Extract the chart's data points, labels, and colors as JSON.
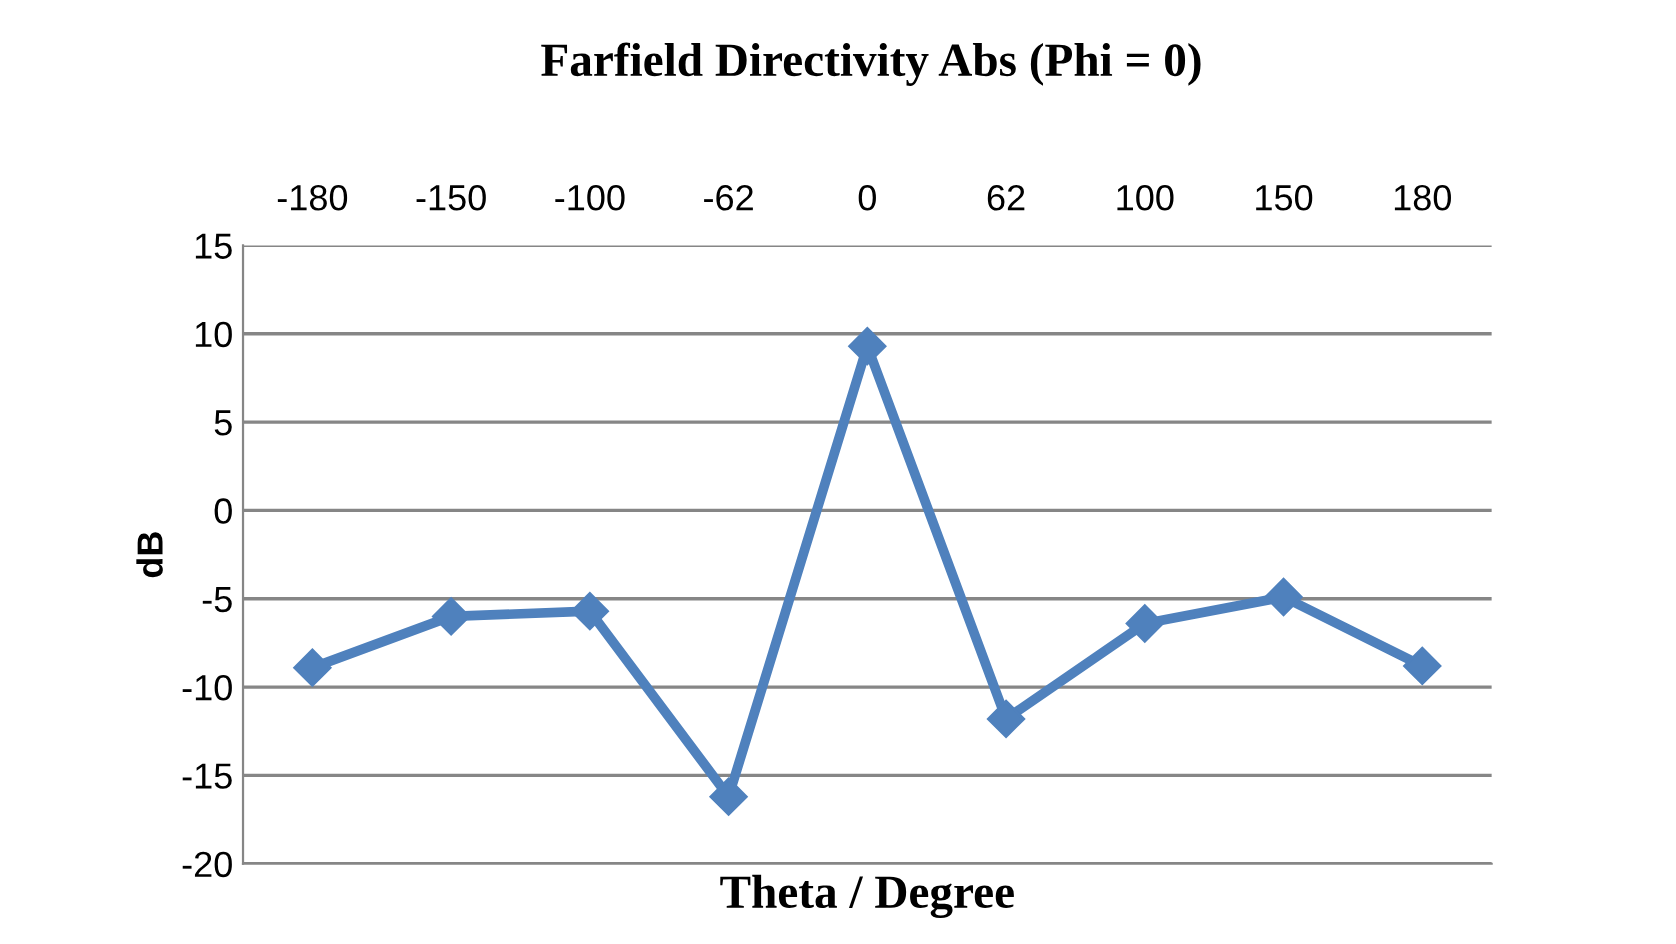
{
  "chart_data": {
    "type": "line",
    "title": "Farfield Directivity Abs (Phi = 0)",
    "xlabel": "Theta / Degree",
    "ylabel": "dB",
    "categories": [
      "-180",
      "-150",
      "-100",
      "-62",
      "0",
      "62",
      "100",
      "150",
      "180"
    ],
    "series": [
      {
        "color": "#4f81bd",
        "values": [
          -8.9,
          -6.0,
          -5.7,
          -16.2,
          9.3,
          -11.8,
          -6.4,
          -4.9,
          -8.8
        ]
      }
    ],
    "ylim": [
      -20,
      15
    ],
    "yticks": [
      -20,
      -15,
      -10,
      -5,
      0,
      5,
      10,
      15
    ],
    "grid": "y",
    "marker": "diamond",
    "line_style": "solid",
    "legend": false
  }
}
